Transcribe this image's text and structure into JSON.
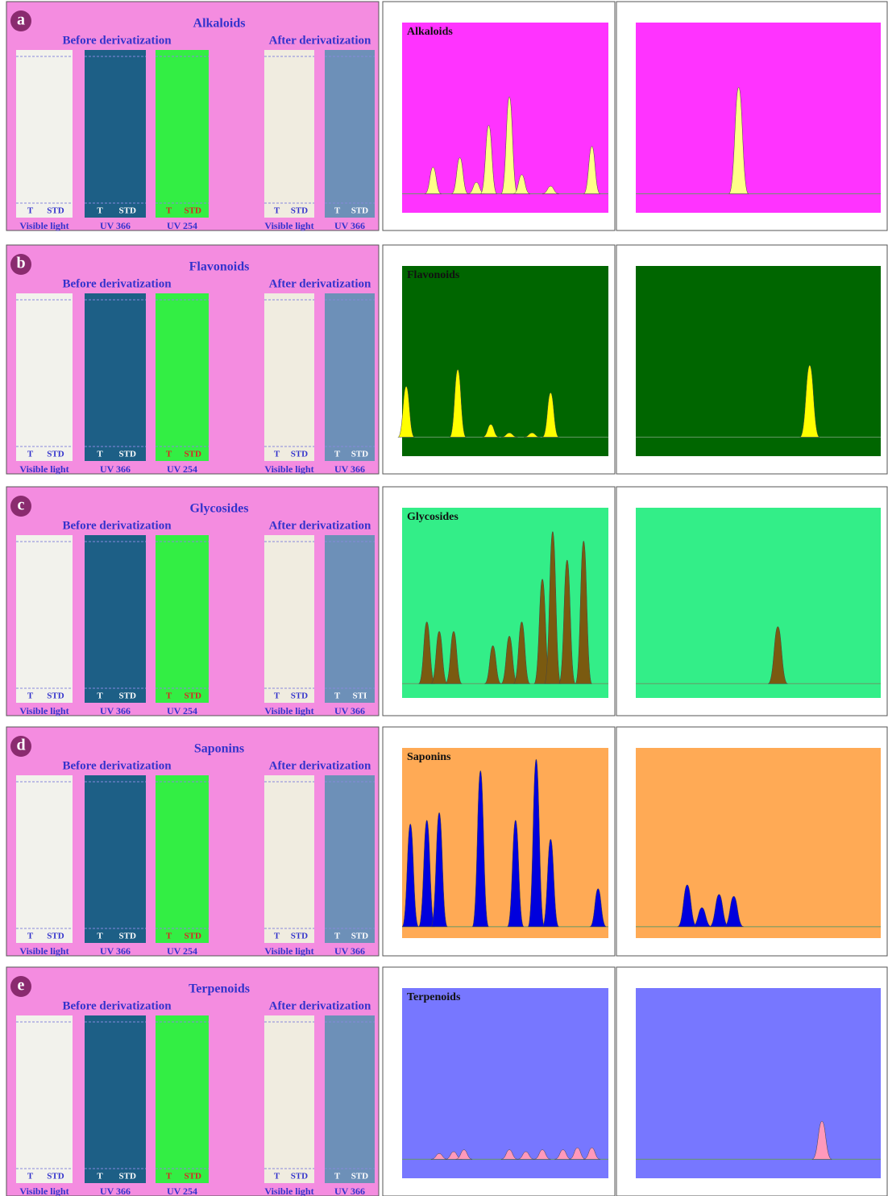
{
  "panels": [
    {
      "letter": "a",
      "title": "Alkaloids",
      "before": "Before derivatization",
      "after": "After derivatization",
      "plates": [
        {
          "lanes": [
            "T",
            "STD"
          ],
          "caption": "Visible light"
        },
        {
          "lanes": [
            "T",
            "STD"
          ],
          "caption": "UV 366"
        },
        {
          "lanes": [
            "T",
            "STD"
          ],
          "caption": "UV 254"
        },
        {
          "lanes": [
            "T",
            "STD"
          ],
          "caption": "Visible light"
        },
        {
          "lanes": [
            "T",
            "STD"
          ],
          "caption": "UV 366"
        }
      ],
      "bg": "#ff33ff",
      "peak_color": "#ffff88",
      "chromatograms": [
        {
          "title": "Alkaloids",
          "ylim": [
            0,
            1000
          ],
          "baseline": 100,
          "peaks": [
            [
              0.15,
              240
            ],
            [
              0.28,
              290
            ],
            [
              0.36,
              160
            ],
            [
              0.42,
              460
            ],
            [
              0.52,
              610
            ],
            [
              0.58,
              200
            ],
            [
              0.72,
              140
            ],
            [
              0.92,
              350
            ]
          ]
        },
        {
          "ylim": [
            0,
            1000
          ],
          "baseline": 100,
          "peaks": [
            [
              0.42,
              660
            ]
          ]
        }
      ]
    },
    {
      "letter": "b",
      "title": "Flavonoids",
      "before": "Before derivatization",
      "after": "After derivatization",
      "plates": [
        {
          "lanes": [
            "T",
            "STD"
          ],
          "caption": "Visible light"
        },
        {
          "lanes": [
            "T",
            "STD"
          ],
          "caption": "UV 366"
        },
        {
          "lanes": [
            "T",
            "STD"
          ],
          "caption": "UV 254"
        },
        {
          "lanes": [
            "T",
            "STD"
          ],
          "caption": "Visible light"
        },
        {
          "lanes": [
            "T",
            "STD"
          ],
          "caption": "UV 366"
        }
      ],
      "bg": "#006600",
      "peak_color": "#ffff00",
      "chromatograms": [
        {
          "title": "Flavonoids",
          "ylim": [
            0,
            900
          ],
          "baseline": 90,
          "peaks": [
            [
              0.02,
              330
            ],
            [
              0.27,
              410
            ],
            [
              0.43,
              150
            ],
            [
              0.52,
              110
            ],
            [
              0.63,
              110
            ],
            [
              0.72,
              300
            ]
          ]
        },
        {
          "ylim": [
            0,
            900
          ],
          "baseline": 90,
          "peaks": [
            [
              0.71,
              430
            ]
          ]
        }
      ]
    },
    {
      "letter": "c",
      "title": "Glycosides",
      "before": "Before derivatization",
      "after": "After derivatization",
      "plates": [
        {
          "lanes": [
            "T",
            "STD"
          ],
          "caption": "Visible light"
        },
        {
          "lanes": [
            "T",
            "STD"
          ],
          "caption": "UV 366"
        },
        {
          "lanes": [
            "T",
            "STD"
          ],
          "caption": "UV 254"
        },
        {
          "lanes": [
            "T",
            "STD"
          ],
          "caption": "Visible light"
        },
        {
          "lanes": [
            "T",
            "STI"
          ],
          "caption": "UV 366"
        }
      ],
      "bg": "#33ee88",
      "peak_color": "#7a5a10",
      "chromatograms": [
        {
          "title": "Glycosides",
          "ylim": [
            0,
            400
          ],
          "baseline": 30,
          "peaks": [
            [
              0.12,
              160
            ],
            [
              0.18,
              140
            ],
            [
              0.25,
              140
            ],
            [
              0.44,
              110
            ],
            [
              0.52,
              130
            ],
            [
              0.58,
              160
            ],
            [
              0.68,
              250
            ],
            [
              0.73,
              350
            ],
            [
              0.8,
              290
            ],
            [
              0.88,
              330
            ]
          ]
        },
        {
          "ylim": [
            0,
            400
          ],
          "baseline": 30,
          "peaks": [
            [
              0.58,
              150
            ]
          ]
        }
      ]
    },
    {
      "letter": "d",
      "title": "Saponins",
      "before": "Before derivatization",
      "after": "After derivatization",
      "plates": [
        {
          "lanes": [
            "T",
            "STD"
          ],
          "caption": "Visible light"
        },
        {
          "lanes": [
            "T",
            "STD"
          ],
          "caption": "UV 366"
        },
        {
          "lanes": [
            "T",
            "STD"
          ],
          "caption": "UV 254"
        },
        {
          "lanes": [
            "T",
            "STD"
          ],
          "caption": "Visible light"
        },
        {
          "lanes": [
            "T",
            "STD"
          ],
          "caption": "UV 366"
        }
      ],
      "bg": "#ffaa55",
      "peak_color": "#0000dd",
      "chromatograms": [
        {
          "title": "Saponins",
          "ylim": [
            0,
            500
          ],
          "baseline": 30,
          "peaks": [
            [
              0.04,
              300
            ],
            [
              0.12,
              310
            ],
            [
              0.18,
              330
            ],
            [
              0.38,
              440
            ],
            [
              0.55,
              310
            ],
            [
              0.65,
              470
            ],
            [
              0.72,
              260
            ],
            [
              0.95,
              130
            ]
          ]
        },
        {
          "ylim": [
            0,
            500
          ],
          "baseline": 30,
          "peaks": [
            [
              0.21,
              140
            ],
            [
              0.27,
              80
            ],
            [
              0.34,
              115
            ],
            [
              0.4,
              110
            ]
          ]
        }
      ]
    },
    {
      "letter": "e",
      "title": "Terpenoids",
      "before": "Before derivatization",
      "after": "After derivatization",
      "plates": [
        {
          "lanes": [
            "T",
            "STD"
          ],
          "caption": "Visible light"
        },
        {
          "lanes": [
            "T",
            "STD"
          ],
          "caption": "UV 366"
        },
        {
          "lanes": [
            "T",
            "STD"
          ],
          "caption": "UV 254"
        },
        {
          "lanes": [
            "T",
            "STD"
          ],
          "caption": "Visible light"
        },
        {
          "lanes": [
            "T",
            "STD"
          ],
          "caption": "UV 366"
        }
      ],
      "bg": "#7777ff",
      "peak_color": "#ff99bb",
      "chromatograms": [
        {
          "title": "Terpenoids",
          "ylim": [
            0,
            1000
          ],
          "baseline": 100,
          "peaks": [
            [
              0.18,
              130
            ],
            [
              0.25,
              140
            ],
            [
              0.3,
              150
            ],
            [
              0.52,
              150
            ],
            [
              0.6,
              140
            ],
            [
              0.68,
              150
            ],
            [
              0.78,
              150
            ],
            [
              0.85,
              160
            ],
            [
              0.92,
              160
            ]
          ]
        },
        {
          "ylim": [
            0,
            1000
          ],
          "baseline": 100,
          "peaks": [
            [
              0.76,
              300
            ]
          ]
        }
      ]
    }
  ]
}
